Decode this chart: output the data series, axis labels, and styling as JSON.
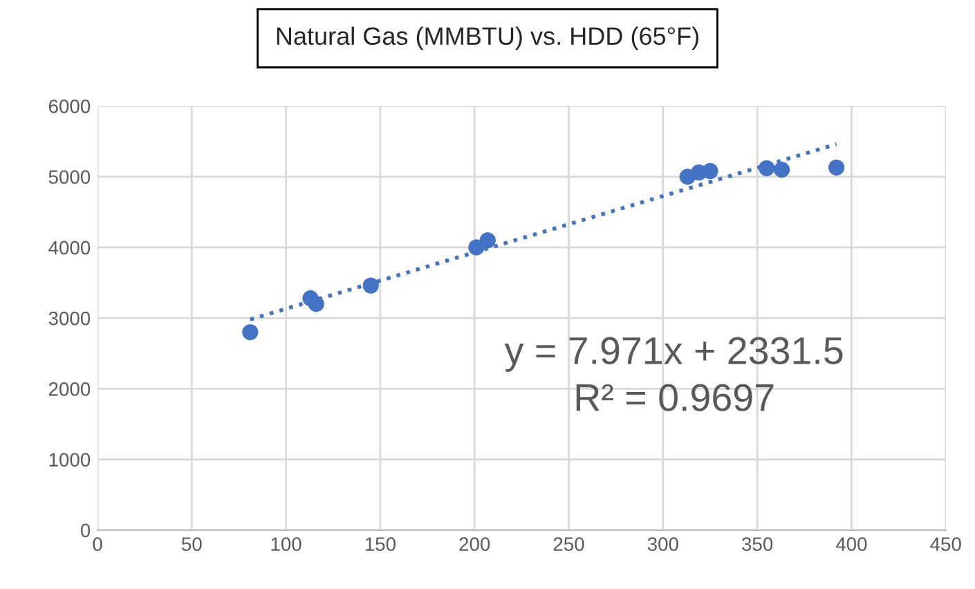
{
  "chart_data": {
    "type": "scatter",
    "title": "Natural Gas (MMBTU) vs. HDD (65°F)",
    "series": [
      {
        "color": "#4472c4",
        "marker": "circle",
        "x": [
          81,
          113,
          116,
          145,
          201,
          207,
          313,
          319,
          325,
          355,
          363,
          392
        ],
        "values": [
          2800,
          3280,
          3200,
          3460,
          4000,
          4100,
          5000,
          5060,
          5080,
          5120,
          5100,
          5130
        ]
      },
      {
        "type": "line",
        "color": "#4472c4",
        "line_style": "dotted",
        "marker": "none",
        "x": [
          81,
          392
        ],
        "values": [
          2980,
          5460
        ]
      }
    ],
    "annotations": [
      "y = 7.971x + 2331.5\nR² = 0.9697"
    ],
    "xlim": [
      0,
      450
    ],
    "xticks": [
      0,
      50,
      100,
      150,
      200,
      250,
      300,
      350,
      400,
      450
    ],
    "ylim": [
      0,
      6000
    ],
    "yticks": [
      0,
      1000,
      2000,
      3000,
      4000,
      5000,
      6000
    ],
    "grid": true,
    "legend": false
  }
}
